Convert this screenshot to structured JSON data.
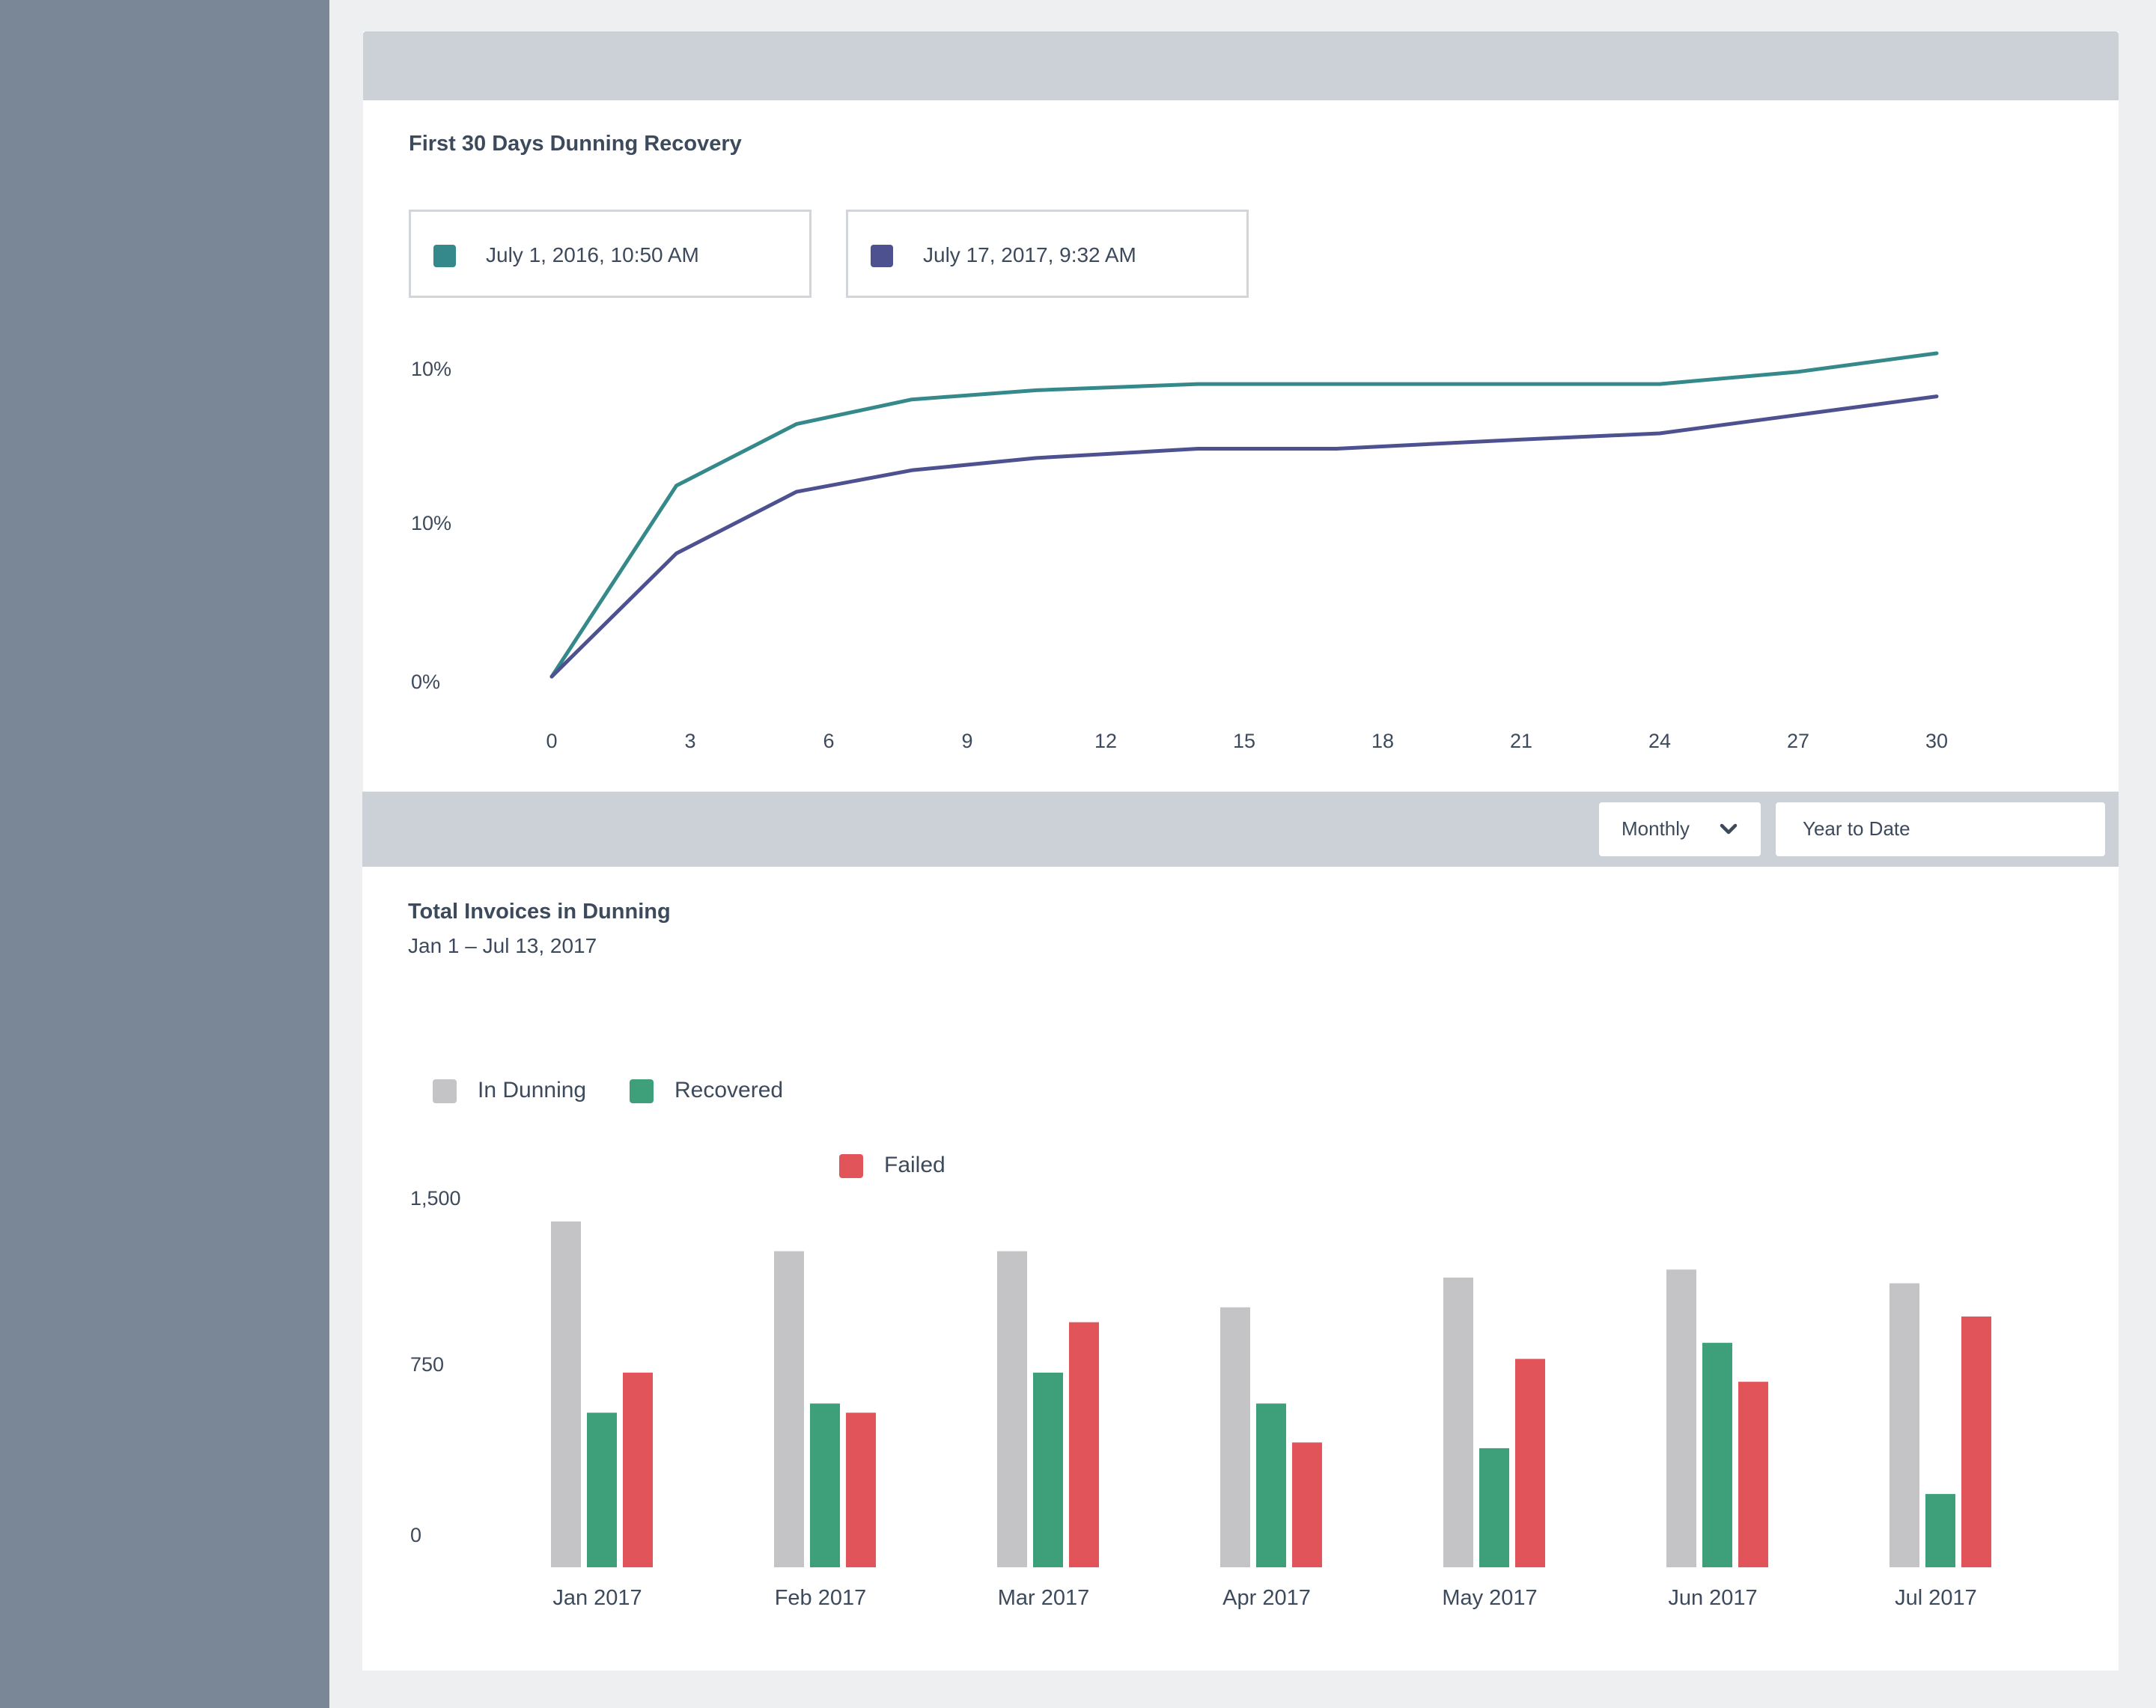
{
  "recovery_card": {
    "title": "First 30 Days Dunning Recovery",
    "legend": [
      {
        "label": "July 1, 2016, 10:50 AM",
        "color": "#35898a"
      },
      {
        "label": "July 17, 2017, 9:32 AM",
        "color": "#4d5190"
      }
    ]
  },
  "invoices_card": {
    "title": "Total Invoices in Dunning",
    "subtitle": "Jan 1 – Jul 13, 2017",
    "period_select": {
      "value": "Monthly",
      "icon": "chevron-down-icon"
    },
    "range_select": {
      "value": "Year to Date"
    },
    "legend": [
      {
        "label": "In Dunning",
        "color": "#c4c4c6"
      },
      {
        "label": "Recovered",
        "color": "#3ea07b"
      },
      {
        "label": "Failed",
        "color": "#e1555a"
      }
    ]
  },
  "chart_data": [
    {
      "type": "line",
      "x": [
        0,
        3,
        6,
        9,
        12,
        15,
        18,
        21,
        24,
        27,
        30
      ],
      "x_ticks": [
        "0",
        "3",
        "6",
        "9",
        "12",
        "15",
        "18",
        "21",
        "24",
        "27",
        "30"
      ],
      "y_ticks": [
        "10%",
        "10%",
        "0%"
      ],
      "series": [
        {
          "name": "July 1, 2016, 10:50 AM",
          "color": "#35898a",
          "points": [
            [
              0,
              0.0
            ],
            [
              2.7,
              6.2
            ],
            [
              5.3,
              8.2
            ],
            [
              7.8,
              9.0
            ],
            [
              10.5,
              9.3
            ],
            [
              14.0,
              9.5
            ],
            [
              17.0,
              9.5
            ],
            [
              21.0,
              9.5
            ],
            [
              24.0,
              9.5
            ],
            [
              27.0,
              9.9
            ],
            [
              30.0,
              10.5
            ]
          ]
        },
        {
          "name": "July 17, 2017, 9:32 AM",
          "color": "#4d5190",
          "points": [
            [
              0,
              0.0
            ],
            [
              2.7,
              4.0
            ],
            [
              5.3,
              6.0
            ],
            [
              7.8,
              6.7
            ],
            [
              10.5,
              7.1
            ],
            [
              14.0,
              7.4
            ],
            [
              17.0,
              7.4
            ],
            [
              21.0,
              7.7
            ],
            [
              24.0,
              7.9
            ],
            [
              27.0,
              8.5
            ],
            [
              30.0,
              9.1
            ]
          ]
        }
      ],
      "ylim": [
        0,
        10.5
      ],
      "grid": false,
      "legend": "top-left"
    },
    {
      "type": "bar",
      "categories": [
        "Jan 2017",
        "Feb 2017",
        "Mar 2017",
        "Apr 2017",
        "May 2017",
        "Jun 2017",
        "Jul 2017"
      ],
      "series": [
        {
          "name": "In Dunning",
          "color": "#c4c4c6",
          "values": [
            1510,
            1380,
            1380,
            1135,
            1265,
            1300,
            1240
          ]
        },
        {
          "name": "Recovered",
          "color": "#3ea07b",
          "values": [
            675,
            715,
            850,
            715,
            520,
            980,
            320
          ]
        },
        {
          "name": "Failed",
          "color": "#e1555a",
          "values": [
            850,
            675,
            1070,
            545,
            910,
            810,
            1095
          ]
        }
      ],
      "y_ticks": [
        "1,500",
        "750",
        "0"
      ],
      "ylim": [
        0,
        1500
      ],
      "grid": false,
      "legend": "top-left"
    }
  ]
}
